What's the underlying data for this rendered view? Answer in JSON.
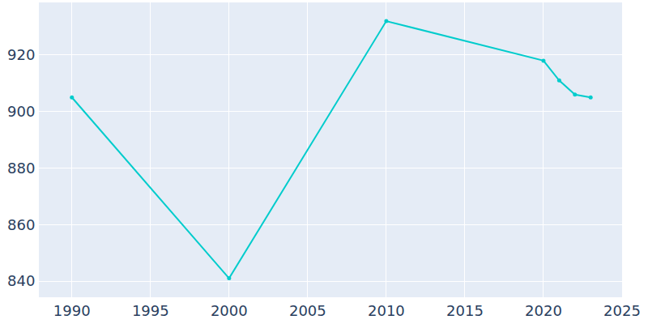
{
  "chart_data": {
    "type": "line",
    "x": [
      1990,
      2000,
      2010,
      2020,
      2021,
      2022,
      2023
    ],
    "values": [
      905,
      841,
      932,
      918,
      911,
      906,
      905
    ],
    "color": "#00cccc",
    "marker": "circle",
    "xlim": [
      1987.9,
      2025
    ],
    "xticks": [
      1990,
      1995,
      2000,
      2005,
      2010,
      2015,
      2020,
      2025
    ],
    "ylim": [
      834.3,
      938.6
    ],
    "yticks": [
      840,
      860,
      880,
      900,
      920
    ],
    "grid": true
  }
}
